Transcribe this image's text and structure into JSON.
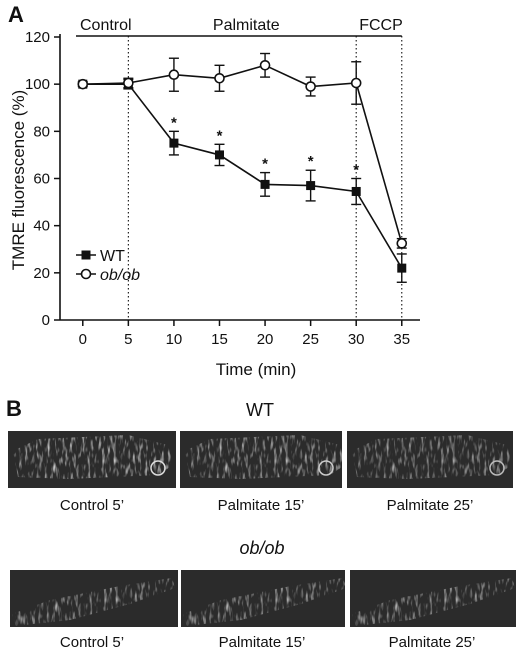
{
  "panel_a": {
    "letter": "A"
  },
  "panel_b": {
    "letter": "B",
    "groups": [
      {
        "title": "WT",
        "italic": false,
        "captions": [
          "Control 5’",
          "Palmitate 15’",
          "Palmitate 25’"
        ]
      },
      {
        "title": "ob/ob",
        "italic": true,
        "captions": [
          "Control 5’",
          "Palmitate 15’",
          "Palmitate 25’"
        ]
      }
    ]
  },
  "chart_data": {
    "type": "line",
    "xlabel": "Time (min)",
    "ylabel": "TMRE fluorescence (%)",
    "x": [
      0,
      5,
      10,
      15,
      20,
      25,
      30,
      35
    ],
    "xticks": [
      "0",
      "5",
      "10",
      "15",
      "20",
      "25",
      "30",
      "35"
    ],
    "yticks": [
      "0",
      "20",
      "40",
      "60",
      "80",
      "100",
      "120"
    ],
    "xlim": [
      -2.5,
      37
    ],
    "ylim": [
      0,
      120
    ],
    "grid": false,
    "legend_position": "lower-left",
    "phases": [
      {
        "label": "Control",
        "start": -2.5,
        "end": 5
      },
      {
        "label": "Palmitate",
        "start": 5,
        "end": 30
      },
      {
        "label": "FCCP",
        "start": 30,
        "end": 35
      }
    ],
    "series": [
      {
        "name": "WT",
        "italic": false,
        "marker": "filled-square",
        "values": [
          100,
          100,
          75,
          70,
          57.5,
          57,
          54.5,
          22
        ],
        "errors": [
          1,
          2,
          5,
          4.5,
          5,
          6.5,
          5.5,
          6
        ],
        "significance": [
          "",
          "",
          "*",
          "*",
          "*",
          "*",
          "*",
          ""
        ]
      },
      {
        "name": "ob/ob",
        "italic": true,
        "marker": "open-circle",
        "values": [
          100,
          100.5,
          104,
          102.5,
          108,
          99,
          100.5,
          32.5
        ],
        "errors": [
          0,
          2,
          7,
          5.5,
          5,
          4,
          9,
          2
        ]
      }
    ]
  }
}
